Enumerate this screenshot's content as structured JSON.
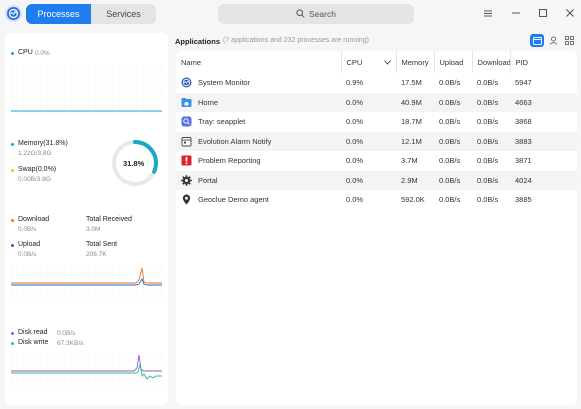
{
  "header": {
    "tabs": [
      {
        "label": "Processes",
        "active": true
      },
      {
        "label": "Services",
        "active": false
      }
    ],
    "search_placeholder": "Search"
  },
  "sidebar": {
    "cpu": {
      "label": "CPU",
      "value": "0.0%"
    },
    "memory": {
      "label": "Memory(31.8%)",
      "value": "1.22G/3.8G"
    },
    "swap": {
      "label": "Swap(0.0%)",
      "value": "0.00B/3.8G"
    },
    "memory_gauge": {
      "label": "31.8%",
      "fraction": 0.318
    },
    "network": {
      "download": {
        "label": "Download",
        "value": "0.0B/s"
      },
      "total_received": {
        "label": "Total Received",
        "value": "3.0M"
      },
      "upload": {
        "label": "Upload",
        "value": "0.0B/s"
      },
      "total_sent": {
        "label": "Total Sent",
        "value": "206.7K"
      }
    },
    "disk": {
      "read": {
        "label": "Disk read",
        "value": "0.0B/s"
      },
      "write": {
        "label": "Disk write",
        "value": "67.3KB/s"
      }
    },
    "colors": {
      "cpu": "#1a9fd6",
      "memory": "#1a9fd6",
      "swap": "#f0c419",
      "download": "#e07a2e",
      "upload": "#2a62c9",
      "disk_read": "#8a63d2",
      "disk_write": "#3bb78f"
    }
  },
  "main": {
    "title": "Applications",
    "subtitle": "(7 applications and 232 processes are running)",
    "columns": [
      "Name",
      "CPU",
      "Memory",
      "Upload",
      "Download",
      "PID"
    ],
    "rows": [
      {
        "name": "System Monitor",
        "icon": "system-monitor-icon",
        "cpu": "0.9%",
        "memory": "17.5M",
        "upload": "0.0B/s",
        "download": "0.0B/s",
        "pid": "5947"
      },
      {
        "name": "Home",
        "icon": "home-folder-icon",
        "cpu": "0.0%",
        "memory": "40.9M",
        "upload": "0.0B/s",
        "download": "0.0B/s",
        "pid": "4663"
      },
      {
        "name": "Tray: seapplet",
        "icon": "tray-seapplet-icon",
        "cpu": "0.0%",
        "memory": "18.7M",
        "upload": "0.0B/s",
        "download": "0.0B/s",
        "pid": "3868"
      },
      {
        "name": "Evolution Alarm Notify",
        "icon": "alarm-notify-icon",
        "cpu": "0.0%",
        "memory": "12.1M",
        "upload": "0.0B/s",
        "download": "0.0B/s",
        "pid": "3883"
      },
      {
        "name": "Problem Reporting",
        "icon": "problem-reporting-icon",
        "cpu": "0.0%",
        "memory": "3.7M",
        "upload": "0.0B/s",
        "download": "0.0B/s",
        "pid": "3871"
      },
      {
        "name": "Portal",
        "icon": "gear-icon",
        "cpu": "0.0%",
        "memory": "2.9M",
        "upload": "0.0B/s",
        "download": "0.0B/s",
        "pid": "4024"
      },
      {
        "name": "Geoclue Demo agent",
        "icon": "location-pin-icon",
        "cpu": "0.0%",
        "memory": "592.0K",
        "upload": "0.0B/s",
        "download": "0.0B/s",
        "pid": "3885"
      }
    ]
  }
}
